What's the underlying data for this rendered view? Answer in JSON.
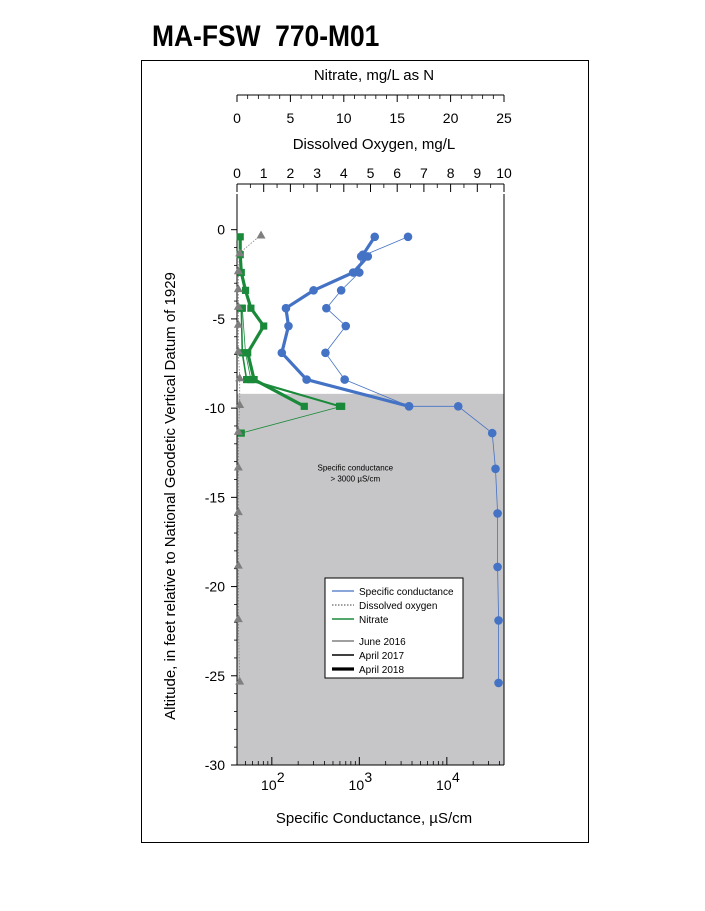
{
  "title": "MA-FSW  770-M01",
  "chart_data": {
    "type": "line",
    "y_axis": {
      "label": "Altitude, in feet relative to National Geodetic Vertical Datum of 1929",
      "range": [
        -30,
        2
      ],
      "ticks": [
        0,
        -5,
        -10,
        -15,
        -20,
        -25,
        -30
      ]
    },
    "x_axes": {
      "nitrate": {
        "label": "Nitrate, mg/L as N",
        "range": [
          0,
          25
        ],
        "ticks": [
          0,
          5,
          10,
          15,
          20,
          25
        ]
      },
      "dissolved_oxygen": {
        "label": "Dissolved Oxygen, mg/L",
        "range": [
          0,
          10
        ],
        "ticks": [
          0,
          1,
          2,
          3,
          4,
          5,
          6,
          7,
          8,
          9,
          10
        ]
      },
      "specific_conductance": {
        "label": "Specific Conductance, µS/cm",
        "scale": "log",
        "range": [
          40,
          45000
        ],
        "ticks": [
          {
            "value": 100,
            "base": "10",
            "exp": "2"
          },
          {
            "value": 1000,
            "base": "10",
            "exp": "3"
          },
          {
            "value": 10000,
            "base": "10",
            "exp": "4"
          }
        ]
      }
    },
    "shaded_region": {
      "altitude_top": -9.2,
      "altitude_bottom": -30
    },
    "annotation": {
      "line1": "Specific conductance",
      "line2": "> 3000 µS/cm",
      "altitude": -13.5,
      "sc_position": 900
    },
    "legend": {
      "placement": "lower-center",
      "series_entries": [
        {
          "label": "Specific conductance",
          "color": "#4472c4",
          "style": "solid"
        },
        {
          "label": "Dissolved oxygen",
          "color": "#808080",
          "style": "dotted"
        },
        {
          "label": "Nitrate",
          "color": "#1a8a3a",
          "style": "solid"
        }
      ],
      "date_entries": [
        {
          "label": "June 2016",
          "width": 0.8
        },
        {
          "label": "April 2017",
          "width": 1.6
        },
        {
          "label": "April 2018",
          "width": 3.2
        }
      ]
    },
    "series": {
      "specific_conductance": [
        {
          "date": "June 2016",
          "points": [
            {
              "y": -0.4,
              "x": 3600
            },
            {
              "y": -1.5,
              "x": 1050
            },
            {
              "y": -2.4,
              "x": 1000
            },
            {
              "y": -3.4,
              "x": 620
            },
            {
              "y": -4.4,
              "x": 420
            },
            {
              "y": -5.4,
              "x": 700
            },
            {
              "y": -6.9,
              "x": 410
            },
            {
              "y": -8.4,
              "x": 680
            },
            {
              "y": -9.9,
              "x": 3700
            },
            {
              "y": -9.9,
              "x": 13500
            },
            {
              "y": -11.4,
              "x": 33000
            },
            {
              "y": -13.4,
              "x": 36000
            },
            {
              "y": -15.9,
              "x": 38000
            },
            {
              "y": -18.9,
              "x": 38000
            },
            {
              "y": -21.9,
              "x": 39000
            },
            {
              "y": -25.4,
              "x": 39000
            }
          ]
        },
        {
          "date": "April 2018",
          "points": [
            {
              "y": -0.4,
              "x": 1500
            },
            {
              "y": -1.4,
              "x": 1100
            },
            {
              "y": -1.5,
              "x": 1250
            },
            {
              "y": -2.4,
              "x": 850
            },
            {
              "y": -3.4,
              "x": 300
            },
            {
              "y": -4.4,
              "x": 145
            },
            {
              "y": -5.4,
              "x": 155
            },
            {
              "y": -6.9,
              "x": 130
            },
            {
              "y": -8.4,
              "x": 250
            },
            {
              "y": -9.9,
              "x": 3700
            }
          ]
        }
      ],
      "dissolved_oxygen": [
        {
          "date": "June 2016",
          "points": [
            {
              "y": -0.3,
              "x": 0.9
            },
            {
              "y": -1.3,
              "x": 0.1
            },
            {
              "y": -2.3,
              "x": 0.05
            },
            {
              "y": -3.3,
              "x": 0.05
            },
            {
              "y": -4.3,
              "x": 0.05
            },
            {
              "y": -5.3,
              "x": 0.05
            },
            {
              "y": -6.8,
              "x": 0.05
            },
            {
              "y": -8.3,
              "x": 0.1
            },
            {
              "y": -9.8,
              "x": 0.1
            },
            {
              "y": -11.3,
              "x": 0.05
            },
            {
              "y": -13.3,
              "x": 0.05
            },
            {
              "y": -15.8,
              "x": 0.05
            },
            {
              "y": -18.8,
              "x": 0.05
            },
            {
              "y": -21.8,
              "x": 0.05
            },
            {
              "y": -25.3,
              "x": 0.1
            }
          ]
        }
      ],
      "nitrate": [
        {
          "date": "June 2016",
          "points": [
            {
              "y": -4.4,
              "x": 0.5
            },
            {
              "y": -6.9,
              "x": 0.8
            },
            {
              "y": -8.4,
              "x": 1.3
            },
            {
              "y": -9.9,
              "x": 9.8
            },
            {
              "y": -11.4,
              "x": 0.4
            }
          ]
        },
        {
          "date": "April 2017",
          "points": [
            {
              "y": -4.4,
              "x": 0.4
            },
            {
              "y": -6.9,
              "x": 0.5
            },
            {
              "y": -8.4,
              "x": 0.9
            },
            {
              "y": -9.9,
              "x": 9.6
            }
          ]
        },
        {
          "date": "April 2018",
          "points": [
            {
              "y": -0.4,
              "x": 0.3
            },
            {
              "y": -1.4,
              "x": 0.3
            },
            {
              "y": -2.4,
              "x": 0.4
            },
            {
              "y": -3.4,
              "x": 0.8
            },
            {
              "y": -4.4,
              "x": 1.3
            },
            {
              "y": -5.4,
              "x": 2.5
            },
            {
              "y": -6.9,
              "x": 1.0
            },
            {
              "y": -8.4,
              "x": 1.6
            },
            {
              "y": -9.9,
              "x": 6.3
            }
          ]
        }
      ]
    },
    "colors": {
      "specific_conductance": "#4472c4",
      "dissolved_oxygen": "#7f7f7f",
      "nitrate": "#1a8a3a",
      "shade": "#c6c6c8"
    }
  }
}
